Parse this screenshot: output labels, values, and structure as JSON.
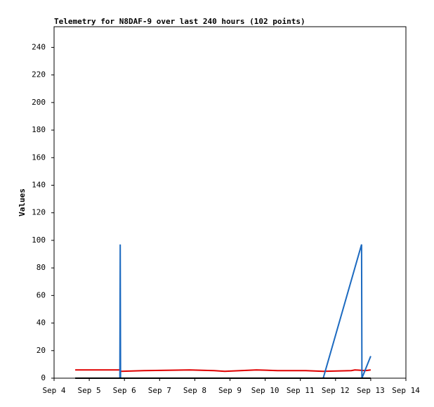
{
  "chart_data": {
    "type": "line",
    "title": "Telemetry for N8DAF-9 over last 240 hours (102 points)",
    "y_label": "Values",
    "xlim": [
      4,
      14
    ],
    "xticks": [
      {
        "value": 4,
        "label": "Sep 4"
      },
      {
        "value": 5,
        "label": "Sep 5"
      },
      {
        "value": 6,
        "label": "Sep 6"
      },
      {
        "value": 7,
        "label": "Sep 7"
      },
      {
        "value": 8,
        "label": "Sep 8"
      },
      {
        "value": 9,
        "label": "Sep 9"
      },
      {
        "value": 10,
        "label": "Sep 10"
      },
      {
        "value": 11,
        "label": "Sep 11"
      },
      {
        "value": 12,
        "label": "Sep 12"
      },
      {
        "value": 13,
        "label": "Sep 13"
      },
      {
        "value": 14,
        "label": "Sep 14"
      }
    ],
    "ylim": [
      0,
      255
    ],
    "yticks": [
      0,
      20,
      40,
      60,
      80,
      100,
      120,
      140,
      160,
      180,
      200,
      220,
      240
    ],
    "grid": false,
    "series": [
      {
        "color": "#e00000",
        "x": [
          4.6,
          5.88,
          5.9,
          6.55,
          7.85,
          8.55,
          8.85,
          9.75,
          10.35,
          11.15,
          11.65,
          12.45,
          12.55,
          12.85,
          13.0
        ],
        "values": [
          6,
          6,
          5,
          5.5,
          6,
          5.5,
          5,
          6,
          5.5,
          5.5,
          5,
          5.5,
          6,
          5.5,
          6
        ]
      },
      {
        "color": "#1c6ac0",
        "x": [
          4.6,
          5.87,
          5.88,
          5.89,
          11.65,
          12.74,
          12.75,
          13.0
        ],
        "values": [
          0,
          0,
          97,
          0,
          0,
          97,
          0,
          16
        ]
      },
      {
        "color": "#000000",
        "x": [
          4.6,
          13.0
        ],
        "values": [
          0,
          0
        ]
      }
    ]
  }
}
